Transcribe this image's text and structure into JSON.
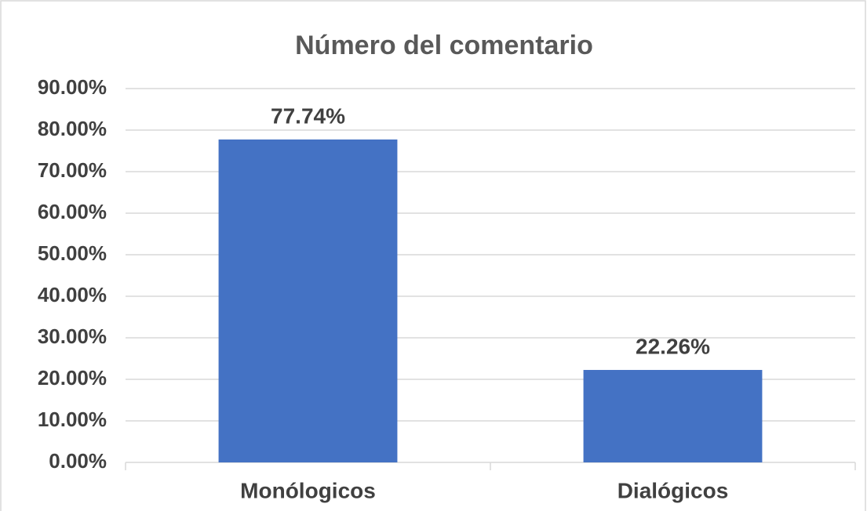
{
  "chart_data": {
    "type": "bar",
    "title": "Número del comentario",
    "categories": [
      "Monólogicos",
      "Dialógicos"
    ],
    "values": [
      77.74,
      22.26
    ],
    "value_labels": [
      "77.74%",
      "22.26%"
    ],
    "color": "#4472c4",
    "ylim": [
      0,
      90
    ],
    "yticks": [
      {
        "value": 0,
        "label": "0.00%"
      },
      {
        "value": 10,
        "label": "10.00%"
      },
      {
        "value": 20,
        "label": "20.00%"
      },
      {
        "value": 30,
        "label": "30.00%"
      },
      {
        "value": 40,
        "label": "40.00%"
      },
      {
        "value": 50,
        "label": "50.00%"
      },
      {
        "value": 60,
        "label": "60.00%"
      },
      {
        "value": 70,
        "label": "70.00%"
      },
      {
        "value": 80,
        "label": "80.00%"
      },
      {
        "value": 90,
        "label": "90.00%"
      }
    ],
    "grid": true
  }
}
